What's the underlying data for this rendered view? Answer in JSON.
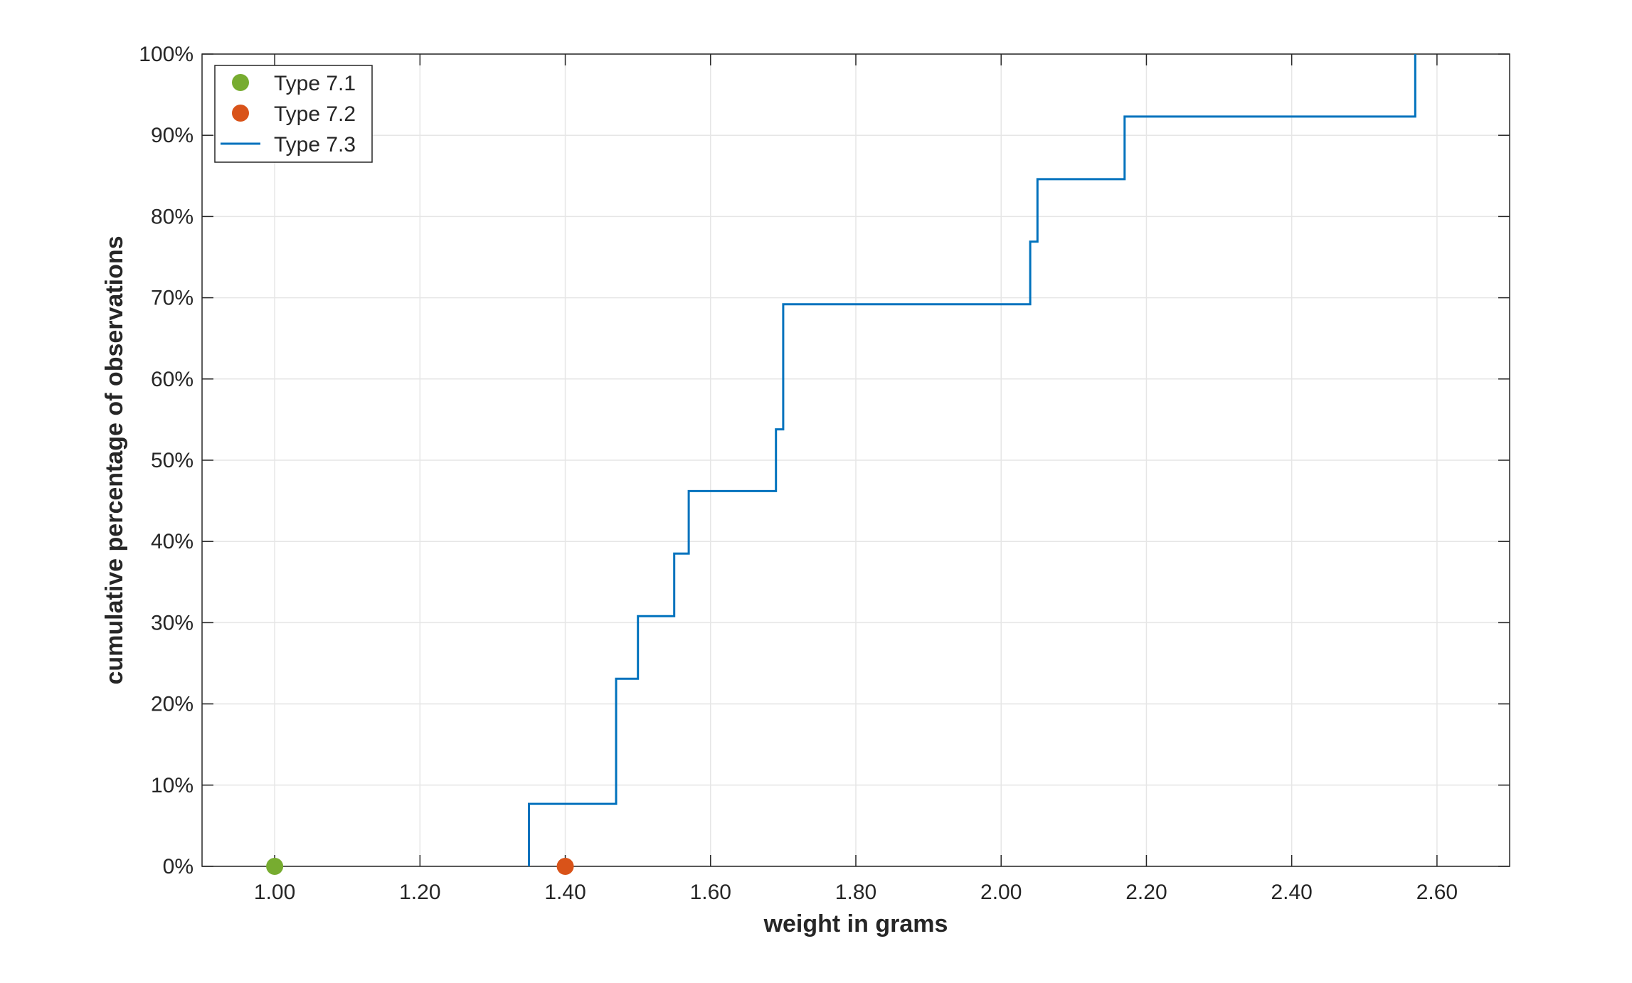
{
  "chart_data": {
    "type": "line",
    "line_style": "step",
    "title": "",
    "xlabel": "weight in grams",
    "ylabel": "cumulative percentage of observations",
    "xlim": [
      0.9,
      2.7
    ],
    "ylim": [
      0,
      100
    ],
    "x_ticks": [
      1.0,
      1.2,
      1.4,
      1.6,
      1.8,
      2.0,
      2.2,
      2.4,
      2.6
    ],
    "x_tick_labels": [
      "1.00",
      "1.20",
      "1.40",
      "1.60",
      "1.80",
      "2.00",
      "2.20",
      "2.40",
      "2.60"
    ],
    "y_ticks": [
      0,
      10,
      20,
      30,
      40,
      50,
      60,
      70,
      80,
      90,
      100
    ],
    "y_tick_labels": [
      "0%",
      "10%",
      "20%",
      "30%",
      "40%",
      "50%",
      "60%",
      "70%",
      "80%",
      "90%",
      "100%"
    ],
    "grid": true,
    "legend_position": "top-left",
    "series": [
      {
        "name": "Type 7.1",
        "kind": "marker",
        "color": "#77AC30",
        "points": [
          {
            "x": 1.0,
            "y": 0
          }
        ]
      },
      {
        "name": "Type 7.2",
        "kind": "marker",
        "color": "#D95319",
        "points": [
          {
            "x": 1.4,
            "y": 0
          }
        ]
      },
      {
        "name": "Type 7.3",
        "kind": "step",
        "color": "#0072BD",
        "points": [
          {
            "x": 1.35,
            "y": 0
          },
          {
            "x": 1.35,
            "y": 7.7
          },
          {
            "x": 1.47,
            "y": 7.7
          },
          {
            "x": 1.47,
            "y": 23.1
          },
          {
            "x": 1.5,
            "y": 23.1
          },
          {
            "x": 1.5,
            "y": 30.8
          },
          {
            "x": 1.55,
            "y": 30.8
          },
          {
            "x": 1.55,
            "y": 38.5
          },
          {
            "x": 1.57,
            "y": 38.5
          },
          {
            "x": 1.57,
            "y": 46.2
          },
          {
            "x": 1.69,
            "y": 46.2
          },
          {
            "x": 1.69,
            "y": 53.8
          },
          {
            "x": 1.7,
            "y": 53.8
          },
          {
            "x": 1.7,
            "y": 69.2
          },
          {
            "x": 2.04,
            "y": 69.2
          },
          {
            "x": 2.04,
            "y": 76.9
          },
          {
            "x": 2.05,
            "y": 76.9
          },
          {
            "x": 2.05,
            "y": 84.6
          },
          {
            "x": 2.17,
            "y": 84.6
          },
          {
            "x": 2.17,
            "y": 92.3
          },
          {
            "x": 2.57,
            "y": 92.3
          },
          {
            "x": 2.57,
            "y": 100
          }
        ]
      }
    ]
  }
}
